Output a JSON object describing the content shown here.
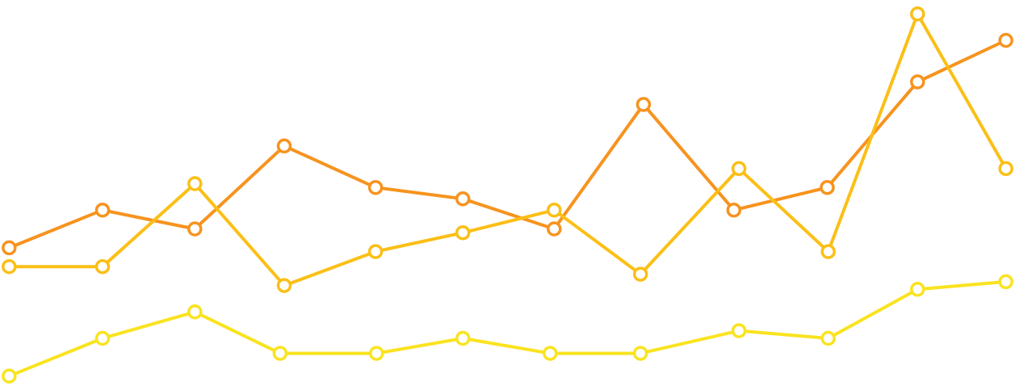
{
  "chart_data": {
    "type": "line",
    "x": [
      0,
      1,
      2,
      3,
      4,
      5,
      6,
      7,
      8,
      9,
      10,
      11
    ],
    "series": [
      {
        "key": "series-orange",
        "color": "#F7931E",
        "values": [
          0.36,
          0.46,
          0.41,
          0.63,
          0.52,
          0.49,
          0.41,
          0.74,
          0.46,
          0.52,
          0.8,
          0.91
        ],
        "x": [
          0.009,
          0.101,
          0.192,
          0.28,
          0.37,
          0.456,
          0.546,
          0.634,
          0.723,
          0.815,
          0.904,
          0.991
        ]
      },
      {
        "key": "series-amber",
        "color": "#FBBF16",
        "values": [
          0.31,
          0.31,
          0.53,
          0.26,
          0.35,
          0.4,
          0.46,
          0.29,
          0.57,
          0.35,
          0.98,
          0.57
        ],
        "x": [
          0.009,
          0.101,
          0.192,
          0.28,
          0.37,
          0.456,
          0.546,
          0.631,
          0.728,
          0.816,
          0.904,
          0.991
        ]
      },
      {
        "key": "series-yellow",
        "color": "#FAE31F",
        "values": [
          0.02,
          0.12,
          0.19,
          0.08,
          0.08,
          0.12,
          0.08,
          0.08,
          0.14,
          0.12,
          0.25,
          0.27
        ],
        "x": [
          0.009,
          0.101,
          0.192,
          0.276,
          0.371,
          0.456,
          0.542,
          0.631,
          0.728,
          0.816,
          0.904,
          0.991
        ]
      }
    ],
    "ylim": [
      0,
      1
    ],
    "grid": false,
    "legend": "none",
    "axes": "hidden"
  }
}
